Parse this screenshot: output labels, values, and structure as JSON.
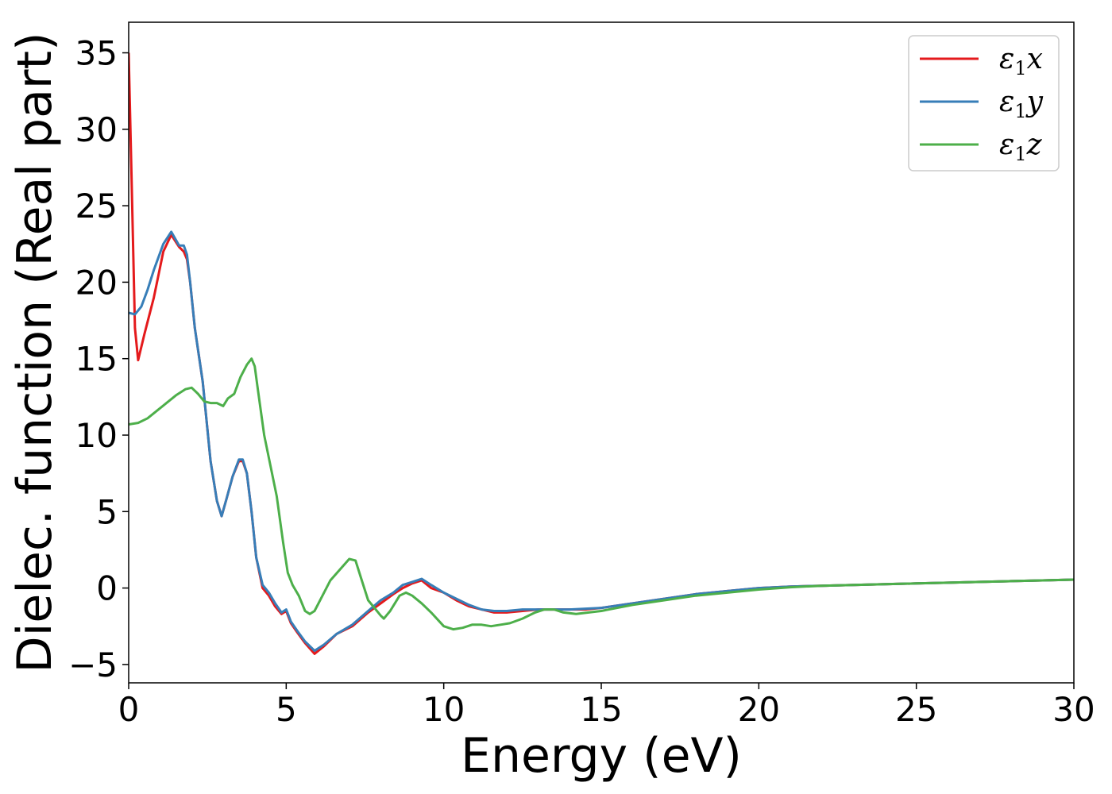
{
  "chart_data": {
    "type": "line",
    "title": "",
    "xlabel": "Energy (eV)",
    "ylabel": "Dielec. function (Real part)",
    "xlim": [
      0,
      30
    ],
    "ylim": [
      -6.2,
      37.0
    ],
    "xticks": [
      0,
      5,
      10,
      15,
      20,
      25,
      30
    ],
    "xtick_labels": [
      "0",
      "5",
      "10",
      "15",
      "20",
      "25",
      "30"
    ],
    "yticks": [
      -5,
      0,
      5,
      10,
      15,
      20,
      25,
      30,
      35
    ],
    "ytick_labels": [
      "−5",
      "0",
      "5",
      "10",
      "15",
      "20",
      "25",
      "30",
      "35"
    ],
    "grid": false,
    "legend_position": "top-right",
    "series": [
      {
        "name": "ε1x",
        "legend_main": "ε",
        "legend_sub": "1",
        "legend_var": "x",
        "color": "#e41a1c",
        "x": [
          0,
          0.1,
          0.2,
          0.3,
          0.5,
          0.8,
          1.1,
          1.35,
          1.6,
          1.75,
          1.85,
          1.95,
          2.1,
          2.35,
          2.6,
          2.8,
          2.95,
          3.1,
          3.3,
          3.5,
          3.62,
          3.75,
          3.9,
          4.05,
          4.25,
          4.45,
          4.65,
          4.85,
          5.0,
          5.15,
          5.35,
          5.6,
          5.9,
          6.2,
          6.6,
          7.1,
          7.6,
          8.0,
          8.4,
          8.7,
          9.0,
          9.3,
          9.6,
          10.0,
          10.4,
          10.8,
          11.2,
          11.6,
          12.0,
          12.5,
          13.0,
          13.5,
          14.0,
          14.5,
          15.0,
          16.0,
          17.0,
          18.0,
          19.0,
          20.0,
          21.0,
          22.0,
          23.0,
          24.0,
          25.0,
          26.0,
          27.0,
          28.0,
          29.0,
          30.0
        ],
        "y": [
          35.0,
          26.0,
          17.0,
          14.9,
          16.6,
          19.0,
          22.0,
          23.1,
          22.3,
          22.0,
          21.5,
          20.0,
          17.0,
          13.5,
          8.3,
          5.7,
          4.7,
          5.8,
          7.3,
          8.3,
          8.3,
          7.5,
          5.0,
          2.0,
          0.0,
          -0.5,
          -1.2,
          -1.7,
          -1.5,
          -2.3,
          -2.9,
          -3.6,
          -4.3,
          -3.8,
          -3.0,
          -2.5,
          -1.6,
          -1.0,
          -0.4,
          0.0,
          0.3,
          0.5,
          0.0,
          -0.3,
          -0.8,
          -1.2,
          -1.4,
          -1.6,
          -1.6,
          -1.5,
          -1.4,
          -1.4,
          -1.4,
          -1.4,
          -1.3,
          -1.0,
          -0.7,
          -0.4,
          -0.2,
          0.0,
          0.1,
          0.15,
          0.2,
          0.25,
          0.3,
          0.35,
          0.4,
          0.45,
          0.5,
          0.55
        ]
      },
      {
        "name": "ε1y",
        "legend_main": "ε",
        "legend_sub": "1",
        "legend_var": "y",
        "color": "#377eb8",
        "x": [
          0,
          0.2,
          0.4,
          0.6,
          0.8,
          1.1,
          1.35,
          1.6,
          1.75,
          1.85,
          1.95,
          2.1,
          2.35,
          2.6,
          2.8,
          2.95,
          3.1,
          3.3,
          3.5,
          3.62,
          3.75,
          3.9,
          4.05,
          4.25,
          4.45,
          4.65,
          4.85,
          5.0,
          5.15,
          5.35,
          5.6,
          5.9,
          6.2,
          6.6,
          7.1,
          7.6,
          8.0,
          8.4,
          8.7,
          9.0,
          9.3,
          9.6,
          10.0,
          10.4,
          10.8,
          11.2,
          11.6,
          12.0,
          12.5,
          13.0,
          13.5,
          14.0,
          14.5,
          15.0,
          16.0,
          17.0,
          18.0,
          19.0,
          20.0,
          21.0,
          22.0,
          23.0,
          24.0,
          25.0,
          26.0,
          27.0,
          28.0,
          29.0,
          30.0
        ],
        "y": [
          18.0,
          17.9,
          18.4,
          19.5,
          20.8,
          22.5,
          23.3,
          22.4,
          22.4,
          21.8,
          20.0,
          17.0,
          13.5,
          8.3,
          5.7,
          4.7,
          5.8,
          7.3,
          8.4,
          8.4,
          7.5,
          5.0,
          2.0,
          0.2,
          -0.3,
          -1.0,
          -1.6,
          -1.4,
          -2.2,
          -2.8,
          -3.5,
          -4.1,
          -3.7,
          -3.0,
          -2.4,
          -1.5,
          -0.8,
          -0.3,
          0.2,
          0.4,
          0.6,
          0.2,
          -0.3,
          -0.7,
          -1.1,
          -1.4,
          -1.5,
          -1.5,
          -1.4,
          -1.4,
          -1.4,
          -1.4,
          -1.35,
          -1.3,
          -1.0,
          -0.7,
          -0.4,
          -0.2,
          0.0,
          0.1,
          0.15,
          0.2,
          0.25,
          0.3,
          0.35,
          0.4,
          0.45,
          0.5,
          0.55
        ]
      },
      {
        "name": "ε1z",
        "legend_main": "ε",
        "legend_sub": "1",
        "legend_var": "z",
        "color": "#4daf4a",
        "x": [
          0,
          0.3,
          0.6,
          0.9,
          1.2,
          1.5,
          1.8,
          2.0,
          2.2,
          2.4,
          2.6,
          2.8,
          3.0,
          3.15,
          3.35,
          3.55,
          3.75,
          3.9,
          4.0,
          4.1,
          4.3,
          4.5,
          4.7,
          4.9,
          5.05,
          5.2,
          5.4,
          5.6,
          5.75,
          5.9,
          6.1,
          6.4,
          6.7,
          7.0,
          7.2,
          7.4,
          7.6,
          7.8,
          8.0,
          8.1,
          8.3,
          8.6,
          8.8,
          9.0,
          9.3,
          9.6,
          10.0,
          10.3,
          10.6,
          10.9,
          11.2,
          11.5,
          11.8,
          12.1,
          12.5,
          12.9,
          13.2,
          13.5,
          13.8,
          14.2,
          14.6,
          15.0,
          16.0,
          17.0,
          18.0,
          19.0,
          20.0,
          21.0,
          22.0,
          23.0,
          24.0,
          25.0,
          26.0,
          27.0,
          28.0,
          29.0,
          30.0
        ],
        "y": [
          10.7,
          10.8,
          11.1,
          11.6,
          12.1,
          12.6,
          13.0,
          13.1,
          12.7,
          12.2,
          12.1,
          12.1,
          11.9,
          12.4,
          12.7,
          13.8,
          14.6,
          15.0,
          14.5,
          13.0,
          10.0,
          8.0,
          6.0,
          3.0,
          1.0,
          0.2,
          -0.5,
          -1.5,
          -1.7,
          -1.5,
          -0.7,
          0.5,
          1.2,
          1.9,
          1.8,
          0.5,
          -0.8,
          -1.3,
          -1.8,
          -2.0,
          -1.5,
          -0.5,
          -0.3,
          -0.5,
          -1.0,
          -1.6,
          -2.5,
          -2.7,
          -2.6,
          -2.4,
          -2.4,
          -2.5,
          -2.4,
          -2.3,
          -2.0,
          -1.6,
          -1.4,
          -1.4,
          -1.6,
          -1.7,
          -1.6,
          -1.5,
          -1.1,
          -0.8,
          -0.5,
          -0.3,
          -0.1,
          0.05,
          0.15,
          0.2,
          0.25,
          0.3,
          0.35,
          0.4,
          0.45,
          0.5,
          0.55
        ]
      }
    ]
  }
}
